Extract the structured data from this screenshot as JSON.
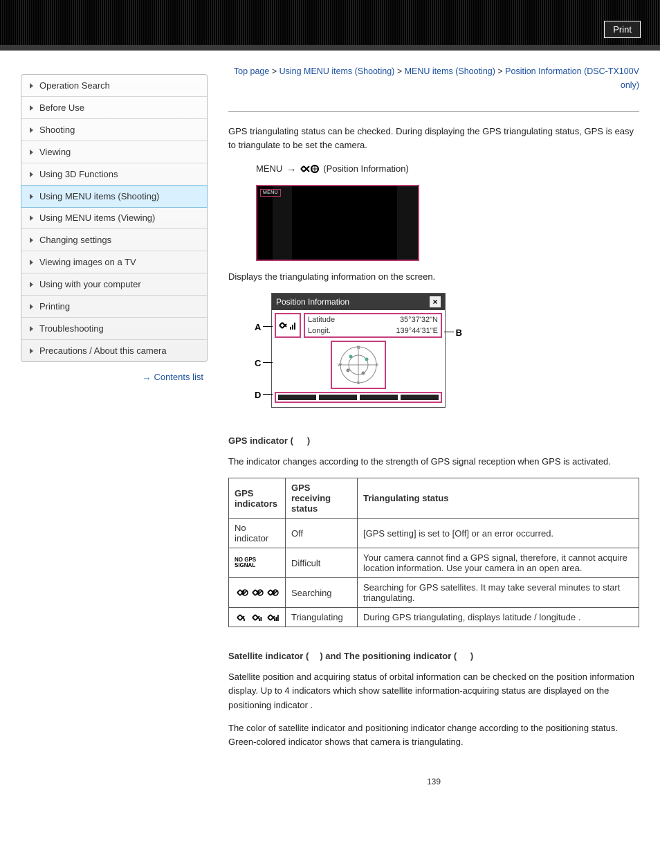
{
  "print_button": "Print",
  "breadcrumb": {
    "top": "Top page",
    "l1": "Using MENU items (Shooting)",
    "l2": "MENU items (Shooting)",
    "l3": "Position Information (DSC-TX100V only)"
  },
  "sidebar": {
    "items": [
      {
        "label": "Operation Search",
        "active": false
      },
      {
        "label": "Before Use",
        "active": false
      },
      {
        "label": "Shooting",
        "active": false
      },
      {
        "label": "Viewing",
        "active": false
      },
      {
        "label": "Using 3D Functions",
        "active": false
      },
      {
        "label": "Using MENU items (Shooting)",
        "active": true
      },
      {
        "label": "Using MENU items (Viewing)",
        "active": false
      },
      {
        "label": "Changing settings",
        "active": false
      },
      {
        "label": "Viewing images on a TV",
        "active": false
      },
      {
        "label": "Using with your computer",
        "active": false
      },
      {
        "label": "Printing",
        "active": false
      },
      {
        "label": "Troubleshooting",
        "active": false
      },
      {
        "label": "Precautions / About this camera",
        "active": false
      }
    ],
    "contents_list": "Contents list"
  },
  "intro": "GPS triangulating status can be checked. During displaying the GPS triangulating status, GPS is easy to triangulate to be set the camera.",
  "menu_line": {
    "menu": "MENU",
    "label": "(Position Information)"
  },
  "camera_menu_tag": "MENU",
  "displays_line": "Displays the triangulating information on the screen.",
  "screen": {
    "title": "Position Information",
    "close": "×",
    "lat_label": "Latitude",
    "lat_val": "35°37'32\"N",
    "lon_label": "Longit.",
    "lon_val": "139°44'31\"E",
    "callouts": {
      "A": "A",
      "B": "B",
      "C": "C",
      "D": "D"
    }
  },
  "gps_indicator": {
    "heading_prefix": "GPS indicator (",
    "heading_suffix": ")",
    "body": "The indicator       changes according to the strength of GPS signal reception when GPS is activated.",
    "table": {
      "headers": [
        "GPS indicators",
        "GPS receiving status",
        "Triangulating status"
      ],
      "rows": [
        {
          "ind": "No indicator",
          "status": "Off",
          "desc": "[GPS setting] is set to [Off] or an error occurred."
        },
        {
          "ind": "NO GPS SIGNAL",
          "status": "Difficult",
          "desc": "Your camera cannot find a GPS signal, therefore, it cannot acquire location information. Use your camera in an open area."
        },
        {
          "ind": "searching",
          "status": "Searching",
          "desc": "Searching for GPS satellites. It may take several minutes to start triangulating."
        },
        {
          "ind": "triangulating",
          "status": "Triangulating",
          "desc": "During GPS triangulating, displays latitude / longitude       ."
        }
      ]
    }
  },
  "satellite": {
    "heading_prefix": "Satellite indicator (",
    "heading_mid": ") and The positioning indicator ( ",
    "heading_suffix": ")",
    "p1": "Satellite position and acquiring status of orbital information        can be checked on the position information display. Up to 4 indicators which show satellite information-acquiring status are displayed on the positioning indicator        .",
    "p2": "The color of satellite indicator and positioning indicator change according to the positioning status. Green-colored indicator shows that camera is triangulating."
  },
  "page_number": "139",
  "colors": {
    "link": "#1c4fa0",
    "active_bg": "#d9f0ff",
    "highlight": "#c73d7d"
  }
}
